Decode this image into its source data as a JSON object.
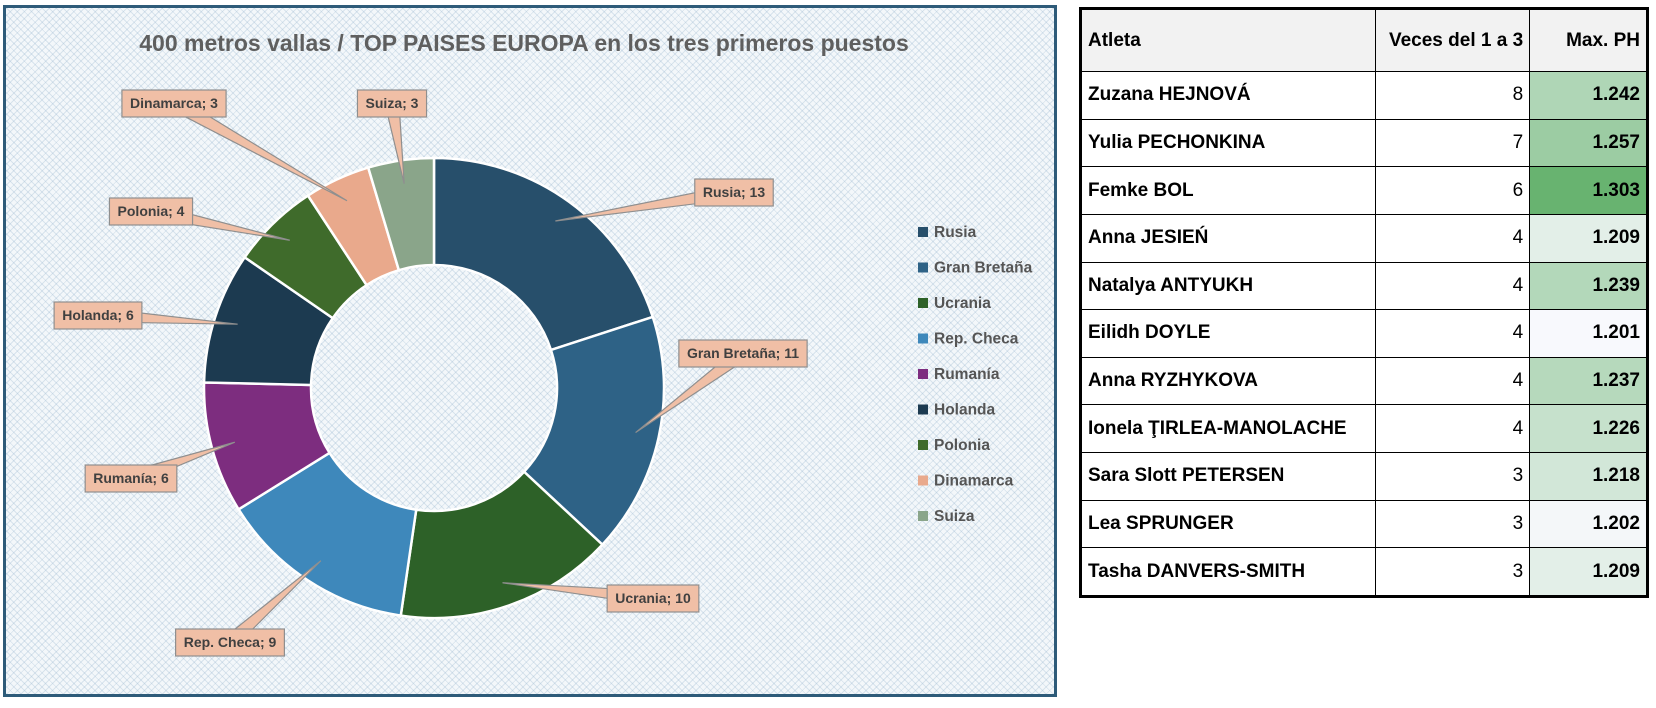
{
  "chart_data": {
    "type": "pie",
    "title": "400 metros vallas / TOP  PAISES EUROPA en los tres primeros puestos",
    "categories": [
      "Rusia",
      "Gran Bretaña",
      "Ucrania",
      "Rep. Checa",
      "Rumanía",
      "Holanda",
      "Polonia",
      "Dinamarca",
      "Suiza"
    ],
    "values": [
      13,
      11,
      10,
      9,
      6,
      6,
      4,
      3,
      3
    ],
    "data_labels": [
      "Rusia; 13",
      "Gran Bretaña; 11",
      "Ucrania; 10",
      "Rep. Checa; 9",
      "Rumanía; 6",
      "Holanda; 6",
      "Polonia; 4",
      "Dinamarca; 3",
      "Suiza; 3"
    ],
    "colors": [
      "#274f6b",
      "#2e6286",
      "#2d6128",
      "#3e88bb",
      "#7d2d7f",
      "#1c3a50",
      "#3f6b2b",
      "#e9a98c",
      "#8aa58a"
    ],
    "donut": true,
    "legend_position": "right"
  },
  "table": {
    "headers": [
      "Atleta",
      "Veces del 1 a 3",
      "Max. PH"
    ],
    "rows": [
      {
        "name": "Zuzana HEJNOVÁ",
        "count": "8",
        "ph": "1.242"
      },
      {
        "name": "Yulia PECHONKINA",
        "count": "7",
        "ph": "1.257"
      },
      {
        "name": "Femke BOL",
        "count": "6",
        "ph": "1.303"
      },
      {
        "name": "Anna JESIEŃ",
        "count": "4",
        "ph": "1.209"
      },
      {
        "name": "Natalya ANTYUKH",
        "count": "4",
        "ph": "1.239"
      },
      {
        "name": "Eilidh DOYLE",
        "count": "4",
        "ph": "1.201"
      },
      {
        "name": "Anna RYZHYKOVA",
        "count": "4",
        "ph": "1.237"
      },
      {
        "name": "Ionela ŢIRLEA-MANOLACHE",
        "count": "4",
        "ph": "1.226"
      },
      {
        "name": "Sara Slott PETERSEN",
        "count": "3",
        "ph": "1.218"
      },
      {
        "name": "Lea SPRUNGER",
        "count": "3",
        "ph": "1.202"
      },
      {
        "name": "Tasha DANVERS-SMITH",
        "count": "3",
        "ph": "1.209"
      }
    ]
  }
}
